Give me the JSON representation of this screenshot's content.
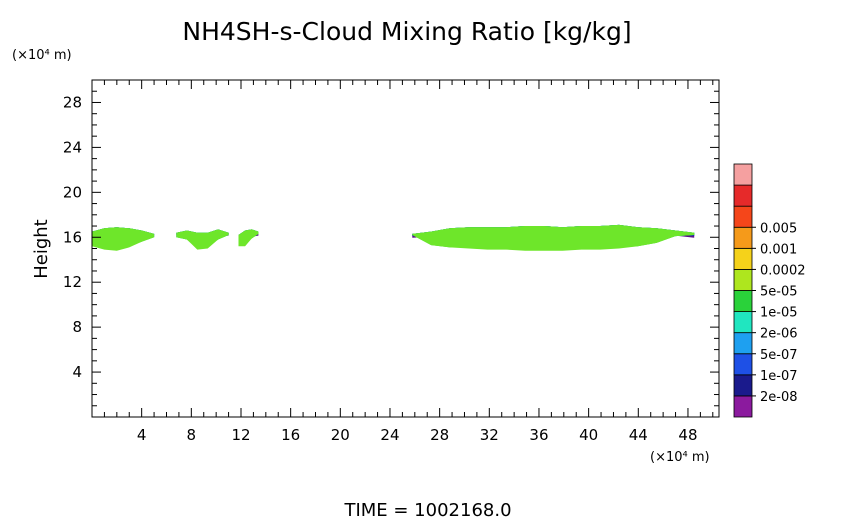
{
  "chart_data": {
    "type": "heatmap",
    "title": "NH4SH-s-Cloud Mixing Ratio [kg/kg]",
    "xlabel": "",
    "ylabel": "Height",
    "x_unit": "(×10⁴ m)",
    "y_unit": "(×10⁴ m)",
    "xlim": [
      0,
      50.5
    ],
    "ylim": [
      0,
      30
    ],
    "x_ticks": [
      4,
      8,
      12,
      16,
      20,
      24,
      28,
      32,
      36,
      40,
      44,
      48
    ],
    "y_ticks": [
      4,
      8,
      12,
      16,
      20,
      24,
      28
    ],
    "grid": false,
    "footer": "TIME = 1002168.0",
    "colorbar": {
      "labels": [
        "2e-08",
        "1e-07",
        "5e-07",
        "2e-06",
        "1e-05",
        "5e-05",
        "0.0002",
        "0.001",
        "0.005"
      ],
      "colors": [
        "#8b1a9e",
        "#1a1a8c",
        "#1e50e6",
        "#1ea0f0",
        "#20e6c0",
        "#2ad23a",
        "#aee61e",
        "#f5d21a",
        "#f59a1a",
        "#f5461a",
        "#e62a2a",
        "#f5a0a0"
      ]
    },
    "cloud_regions": [
      {
        "x": [
          0,
          5
        ],
        "top": [
          16.5,
          16.8,
          16.9,
          16.8,
          16.6,
          16.3
        ],
        "layers": [
          {
            "level": 1,
            "bottom": [
              16.2,
              16.2,
              16.2,
              16.2,
              16.2,
              16.2
            ]
          },
          {
            "level": 2,
            "bottom": [
              15.8,
              15.7,
              15.7,
              15.8,
              15.9,
              16.0
            ]
          },
          {
            "level": 3,
            "bottom": [
              15.5,
              15.3,
              15.3,
              15.4,
              15.7,
              16.0
            ]
          },
          {
            "level": 4,
            "bottom": [
              15.3,
              15.0,
              15.0,
              15.2,
              15.6,
              16.0
            ]
          },
          {
            "level": 5,
            "bottom": [
              15.2,
              14.9,
              14.8,
              15.1,
              15.6,
              16.0
            ]
          }
        ]
      },
      {
        "x": [
          6.8,
          11
        ],
        "top": [
          16.4,
          16.6,
          16.4,
          16.4,
          16.7,
          16.4
        ],
        "layers": [
          {
            "level": 1,
            "bottom": [
              16.2,
              16.2,
              16.1,
              16.1,
              16.2,
              16.3
            ]
          },
          {
            "level": 2,
            "bottom": [
              16.0,
              15.9,
              15.6,
              15.6,
              15.9,
              16.2
            ]
          },
          {
            "level": 3,
            "bottom": [
              16.0,
              15.8,
              15.2,
              15.3,
              15.8,
              16.2
            ]
          },
          {
            "level": 4,
            "bottom": [
              16.0,
              15.8,
              15.0,
              15.1,
              15.8,
              16.2
            ]
          },
          {
            "level": 5,
            "bottom": [
              16.0,
              15.8,
              14.9,
              15.0,
              15.8,
              16.2
            ]
          }
        ]
      },
      {
        "x": [
          11.8,
          13.4
        ],
        "top": [
          16.2,
          16.6,
          16.7,
          16.5
        ],
        "layers": [
          {
            "level": 1,
            "bottom": [
              16.0,
              16.1,
              16.2,
              16.3
            ]
          },
          {
            "level": 2,
            "bottom": [
              15.6,
              15.6,
              16.0,
              16.3
            ]
          },
          {
            "level": 3,
            "bottom": [
              15.4,
              15.4,
              15.9,
              16.3
            ]
          },
          {
            "level": 4,
            "bottom": [
              15.3,
              15.3,
              15.9,
              16.3
            ]
          },
          {
            "level": 5,
            "bottom": [
              15.2,
              15.2,
              15.9,
              16.3
            ]
          }
        ]
      },
      {
        "x": [
          25.8,
          48.5
        ],
        "top": [
          16.3,
          16.5,
          16.8,
          16.9,
          16.9,
          16.9,
          17.0,
          17.0,
          16.9,
          17.0,
          17.0,
          17.1,
          16.9,
          16.8,
          16.6,
          16.4
        ],
        "layers": [
          {
            "level": 1,
            "bottom": [
              16.1,
              16.2,
              16.5,
              16.6,
              16.6,
              16.6,
              16.7,
              16.7,
              16.6,
              16.7,
              16.7,
              16.7,
              16.6,
              16.5,
              16.3,
              16.1
            ]
          },
          {
            "level": 2,
            "bottom": [
              16.2,
              15.7,
              15.6,
              15.6,
              15.5,
              15.5,
              15.5,
              15.5,
              15.5,
              15.5,
              15.5,
              15.6,
              15.6,
              15.8,
              16.1,
              16.2
            ]
          },
          {
            "level": 3,
            "bottom": [
              16.2,
              15.5,
              15.3,
              15.3,
              15.2,
              15.2,
              15.2,
              15.2,
              15.2,
              15.2,
              15.2,
              15.3,
              15.4,
              15.6,
              16.1,
              16.2
            ]
          },
          {
            "level": 4,
            "bottom": [
              16.2,
              15.3,
              15.1,
              15.1,
              15.0,
              15.0,
              15.0,
              15.0,
              15.0,
              15.0,
              15.0,
              15.1,
              15.2,
              15.5,
              16.1,
              16.2
            ]
          },
          {
            "level": 5,
            "bottom": [
              16.2,
              15.3,
              15.1,
              15.0,
              14.9,
              14.9,
              14.8,
              14.8,
              14.8,
              14.9,
              14.9,
              15.0,
              15.2,
              15.5,
              16.1,
              16.2
            ]
          }
        ]
      }
    ],
    "layer_colors": [
      "#5a0f8c",
      "#1a1ab0",
      "#20a8f0",
      "#20e6c0",
      "#2ad23a",
      "#6ee62a"
    ]
  }
}
